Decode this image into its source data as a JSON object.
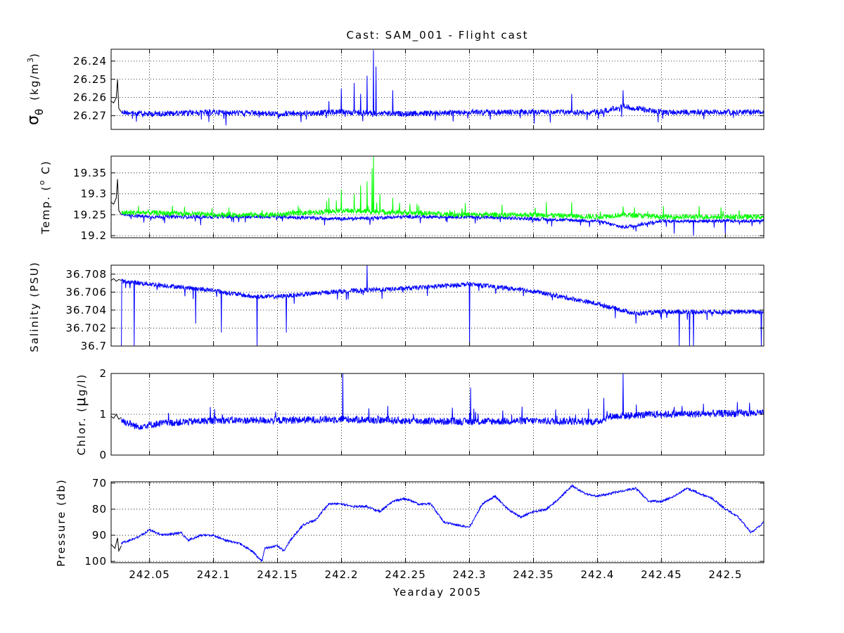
{
  "figure": {
    "title": "Cast: SAM_001 - Flight cast",
    "xlabel": "Yearday 2005"
  },
  "chart_data": [
    {
      "type": "line",
      "panel": "sigma-theta",
      "ylabel_symbol": "σ",
      "ylabel_sub": "θ",
      "ylabel_unit_pre": "(kg/m",
      "ylabel_unit_sup": "3",
      "ylabel_unit_post": ")",
      "xlim": [
        242.02,
        242.53
      ],
      "ylim": [
        26.2335,
        26.2775
      ],
      "y_reversed": true,
      "y_ticks": [
        26.24,
        26.25,
        26.26,
        26.27
      ],
      "y_tick_labels": [
        "26.24",
        "26.25",
        "26.26",
        "26.27"
      ],
      "x_ticks": [
        242.05,
        242.1,
        242.15,
        242.2,
        242.25,
        242.3,
        242.35,
        242.4,
        242.45,
        242.5
      ],
      "x_tick_labels": [],
      "grid": true,
      "series": [
        {
          "role": "pre",
          "color": "#000000",
          "x": [
            242.02,
            242.022,
            242.024,
            242.025,
            242.026,
            242.028
          ],
          "y": [
            26.262,
            26.263,
            26.26,
            26.25,
            26.266,
            26.268
          ]
        },
        {
          "role": "main",
          "color": "#0000ff",
          "noise": 0.0015,
          "spike_dir": -1,
          "x": [
            242.028,
            242.05,
            242.1,
            242.15,
            242.2,
            242.25,
            242.3,
            242.35,
            242.4,
            242.42,
            242.45,
            242.5,
            242.53
          ],
          "y": [
            26.268,
            26.269,
            26.268,
            26.269,
            26.268,
            26.269,
            26.268,
            26.268,
            26.268,
            26.265,
            26.268,
            26.268,
            26.268
          ],
          "spikes": [
            [
              242.19,
              26.262
            ],
            [
              242.2,
              26.255
            ],
            [
              242.21,
              26.252
            ],
            [
              242.215,
              26.258
            ],
            [
              242.22,
              26.248
            ],
            [
              242.225,
              26.234
            ],
            [
              242.227,
              26.243
            ],
            [
              242.24,
              26.256
            ],
            [
              242.38,
              26.258
            ],
            [
              242.42,
              26.256
            ]
          ]
        }
      ]
    },
    {
      "type": "line",
      "panel": "temperature",
      "ylabel_pre": "Temp. (",
      "ylabel_sup": "o",
      "ylabel_post": " C)",
      "xlim": [
        242.02,
        242.53
      ],
      "ylim": [
        19.195,
        19.39
      ],
      "y_ticks": [
        19.2,
        19.25,
        19.3,
        19.35
      ],
      "y_tick_labels": [
        "19.2",
        "19.25",
        "19.3",
        "19.35"
      ],
      "x_ticks": [
        242.05,
        242.1,
        242.15,
        242.2,
        242.25,
        242.3,
        242.35,
        242.4,
        242.45,
        242.5
      ],
      "x_tick_labels": [],
      "grid": true,
      "series": [
        {
          "role": "pre",
          "color": "#000000",
          "x": [
            242.02,
            242.022,
            242.024,
            242.025,
            242.026,
            242.028
          ],
          "y": [
            19.28,
            19.275,
            19.29,
            19.335,
            19.26,
            19.25
          ]
        },
        {
          "role": "main",
          "color": "#0000ff",
          "noise": 0.004,
          "spike_dir": -1,
          "x": [
            242.028,
            242.05,
            242.1,
            242.15,
            242.2,
            242.25,
            242.3,
            242.35,
            242.4,
            242.42,
            242.45,
            242.5,
            242.53
          ],
          "y": [
            19.25,
            19.245,
            19.245,
            19.245,
            19.24,
            19.245,
            19.245,
            19.24,
            19.235,
            19.22,
            19.235,
            19.235,
            19.235
          ],
          "spikes": [
            [
              242.09,
              19.225
            ],
            [
              242.43,
              19.21
            ],
            [
              242.46,
              19.205
            ],
            [
              242.475,
              19.2
            ],
            [
              242.5,
              19.205
            ]
          ]
        },
        {
          "role": "secondary",
          "color": "#00ff00",
          "noise": 0.006,
          "spike_dir": 1,
          "x": [
            242.028,
            242.05,
            242.1,
            242.15,
            242.2,
            242.25,
            242.3,
            242.35,
            242.4,
            242.42,
            242.45,
            242.5,
            242.53
          ],
          "y": [
            19.255,
            19.255,
            19.25,
            19.25,
            19.26,
            19.255,
            19.25,
            19.25,
            19.245,
            19.25,
            19.245,
            19.245,
            19.245
          ],
          "spikes": [
            [
              242.19,
              19.29
            ],
            [
              242.2,
              19.31
            ],
            [
              242.21,
              19.3
            ],
            [
              242.215,
              19.32
            ],
            [
              242.22,
              19.33
            ],
            [
              242.224,
              19.36
            ],
            [
              242.225,
              19.39
            ],
            [
              242.23,
              19.3
            ],
            [
              242.24,
              19.29
            ],
            [
              242.36,
              19.28
            ],
            [
              242.38,
              19.28
            ],
            [
              242.42,
              19.27
            ]
          ]
        }
      ]
    },
    {
      "type": "line",
      "panel": "salinity",
      "ylabel": "Salinity (PSU)",
      "xlim": [
        242.02,
        242.53
      ],
      "ylim": [
        36.7,
        36.709
      ],
      "y_ticks": [
        36.7,
        36.702,
        36.704,
        36.706,
        36.708
      ],
      "y_tick_labels": [
        "36.7",
        "36.702",
        "36.704",
        "36.706",
        "36.708"
      ],
      "x_ticks": [
        242.05,
        242.1,
        242.15,
        242.2,
        242.25,
        242.3,
        242.35,
        242.4,
        242.45,
        242.5
      ],
      "x_tick_labels": [],
      "grid": true,
      "series": [
        {
          "role": "pre",
          "color": "#000000",
          "x": [
            242.02,
            242.022,
            242.024,
            242.026,
            242.028
          ],
          "y": [
            36.7073,
            36.7075,
            36.7072,
            36.7074,
            36.7073
          ]
        },
        {
          "role": "main",
          "color": "#0000ff",
          "noise": 0.00025,
          "spike_dir": -1,
          "x": [
            242.028,
            242.05,
            242.1,
            242.13,
            242.15,
            242.2,
            242.25,
            242.3,
            242.35,
            242.4,
            242.43,
            242.45,
            242.5,
            242.53
          ],
          "y": [
            36.7072,
            36.7069,
            36.7062,
            36.7055,
            36.7055,
            36.7061,
            36.7064,
            36.7069,
            36.7061,
            36.7047,
            36.7036,
            36.7038,
            36.7038,
            36.7038
          ],
          "spikes": [
            [
              242.028,
              36.7
            ],
            [
              242.038,
              36.7
            ],
            [
              242.086,
              36.7025
            ],
            [
              242.106,
              36.7015
            ],
            [
              242.134,
              36.7
            ],
            [
              242.157,
              36.7015
            ],
            [
              242.22,
              36.709
            ],
            [
              242.3,
              36.7
            ],
            [
              242.43,
              36.7025
            ],
            [
              242.464,
              36.7
            ],
            [
              242.472,
              36.7
            ],
            [
              242.475,
              36.7
            ],
            [
              242.528,
              36.7
            ]
          ]
        }
      ]
    },
    {
      "type": "line",
      "panel": "chlorophyll",
      "ylabel_pre": "Chlor. (",
      "ylabel_mu": "μ",
      "ylabel_post": "g/l)",
      "xlim": [
        242.02,
        242.53
      ],
      "ylim": [
        0,
        2
      ],
      "y_ticks": [
        0,
        1,
        2
      ],
      "y_tick_labels": [
        "0",
        "1",
        "2"
      ],
      "x_ticks": [
        242.05,
        242.1,
        242.15,
        242.2,
        242.25,
        242.3,
        242.35,
        242.4,
        242.45,
        242.5
      ],
      "x_tick_labels": [],
      "grid": true,
      "series": [
        {
          "role": "pre",
          "color": "#000000",
          "x": [
            242.02,
            242.022,
            242.024,
            242.026,
            242.028
          ],
          "y": [
            0.95,
            0.9,
            1.0,
            0.88,
            0.92
          ]
        },
        {
          "role": "main",
          "color": "#0000ff",
          "noise": 0.09,
          "spike_dir": 1,
          "x": [
            242.028,
            242.04,
            242.06,
            242.1,
            242.15,
            242.2,
            242.25,
            242.3,
            242.35,
            242.4,
            242.41,
            242.45,
            242.5,
            242.53
          ],
          "y": [
            0.85,
            0.7,
            0.78,
            0.85,
            0.85,
            0.88,
            0.84,
            0.82,
            0.84,
            0.82,
            0.95,
            1.0,
            1.02,
            1.03
          ],
          "spikes": [
            [
              242.201,
              2.0
            ],
            [
              242.301,
              1.65
            ],
            [
              242.405,
              1.4
            ],
            [
              242.42,
              2.0
            ]
          ]
        }
      ]
    },
    {
      "type": "line",
      "panel": "pressure",
      "ylabel": "Pressure (db)",
      "xlim": [
        242.02,
        242.53
      ],
      "ylim": [
        69.5,
        100.5
      ],
      "y_reversed": true,
      "y_ticks": [
        70,
        80,
        90,
        100
      ],
      "y_tick_labels": [
        "70",
        "80",
        "90",
        "100"
      ],
      "x_ticks": [
        242.05,
        242.1,
        242.15,
        242.2,
        242.25,
        242.3,
        242.35,
        242.4,
        242.45,
        242.5
      ],
      "x_tick_labels": [
        "242.05",
        "242.1",
        "242.15",
        "242.2",
        "242.25",
        "242.3",
        "242.35",
        "242.4",
        "242.45",
        "242.5"
      ],
      "grid": true,
      "series": [
        {
          "role": "pre",
          "color": "#000000",
          "x": [
            242.02,
            242.023,
            242.025,
            242.026,
            242.028
          ],
          "y": [
            93.5,
            95,
            91,
            96,
            94
          ]
        },
        {
          "role": "main",
          "color": "#0000ff",
          "noise": 0.4,
          "spike_dir": 0,
          "x": [
            242.028,
            242.04,
            242.05,
            242.06,
            242.075,
            242.08,
            242.09,
            242.1,
            242.11,
            242.12,
            242.13,
            242.138,
            242.14,
            242.15,
            242.155,
            242.16,
            242.17,
            242.18,
            242.19,
            242.2,
            242.21,
            242.22,
            242.23,
            242.24,
            242.25,
            242.26,
            242.27,
            242.28,
            242.29,
            242.3,
            242.31,
            242.32,
            242.33,
            242.34,
            242.35,
            242.36,
            242.37,
            242.38,
            242.39,
            242.4,
            242.41,
            242.42,
            242.43,
            242.44,
            242.45,
            242.46,
            242.47,
            242.48,
            242.49,
            242.5,
            242.51,
            242.52,
            242.53
          ],
          "y": [
            93,
            91,
            88,
            90,
            89,
            92,
            90,
            90,
            92,
            93,
            96,
            100,
            95,
            94,
            96,
            92,
            86,
            84,
            78,
            78,
            79,
            79,
            81,
            77,
            76,
            78,
            78,
            85,
            86,
            87,
            78,
            75,
            80,
            83,
            81,
            80,
            76,
            71,
            74,
            75,
            74,
            73,
            72,
            77,
            77,
            75,
            72,
            74,
            76,
            80,
            83,
            89,
            85
          ]
        }
      ]
    }
  ]
}
